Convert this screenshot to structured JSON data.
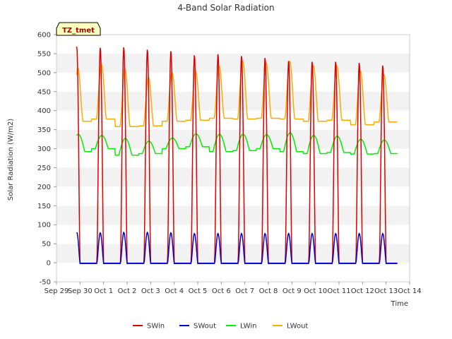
{
  "chart_data": {
    "type": "line",
    "title": "4-Band Solar Radiation",
    "xlabel": "Time",
    "ylabel": "Solar Radiation (W/m2)",
    "badge": "TZ_tmet",
    "x_ticks": [
      "Sep 29",
      "Sep 30",
      "Oct 1",
      "Oct 2",
      "Oct 3",
      "Oct 4",
      "Oct 5",
      "Oct 6",
      "Oct 7",
      "Oct 8",
      "Oct 9",
      "Oct 10",
      "Oct 11",
      "Oct 12",
      "Oct 13",
      "Oct 14"
    ],
    "y_ticks": [
      -50,
      0,
      50,
      100,
      150,
      200,
      250,
      300,
      350,
      400,
      450,
      500,
      550,
      600
    ],
    "ylim": [
      -50,
      600
    ],
    "xlim": [
      "Sep 29",
      "Oct 14"
    ],
    "grid": "horizontal bands",
    "legend_position": "bottom",
    "days": [
      "Sep 30",
      "Oct 1",
      "Oct 2",
      "Oct 3",
      "Oct 4",
      "Oct 5",
      "Oct 6",
      "Oct 7",
      "Oct 8",
      "Oct 9",
      "Oct 10",
      "Oct 11",
      "Oct 12",
      "Oct 13"
    ],
    "series": [
      {
        "name": "SWin",
        "color": "#dd0000",
        "daily_peak": [
          570,
          567,
          568,
          562,
          558,
          547,
          550,
          545,
          540,
          532,
          530,
          530,
          527,
          520
        ],
        "night": -2
      },
      {
        "name": "SWout",
        "color": "#0000cc",
        "daily_peak": [
          80,
          79,
          80,
          80,
          79,
          77,
          77,
          77,
          77,
          77,
          77,
          77,
          77,
          77
        ],
        "night": -1
      },
      {
        "name": "LWin",
        "color": "#00ee00",
        "daily_peak": [
          338,
          335,
          327,
          320,
          328,
          339,
          338,
          338,
          337,
          342,
          335,
          333,
          325,
          323
        ],
        "daily_min": [
          292,
          300,
          283,
          287,
          300,
          305,
          292,
          295,
          300,
          292,
          287,
          290,
          286,
          287
        ]
      },
      {
        "name": "LWout",
        "color": "#ffaa00",
        "daily_peak": [
          512,
          522,
          510,
          488,
          500,
          505,
          518,
          530,
          525,
          530,
          518,
          517,
          505,
          495
        ],
        "daily_min": [
          372,
          378,
          358,
          360,
          372,
          375,
          380,
          378,
          380,
          378,
          372,
          375,
          363,
          370
        ]
      }
    ]
  }
}
